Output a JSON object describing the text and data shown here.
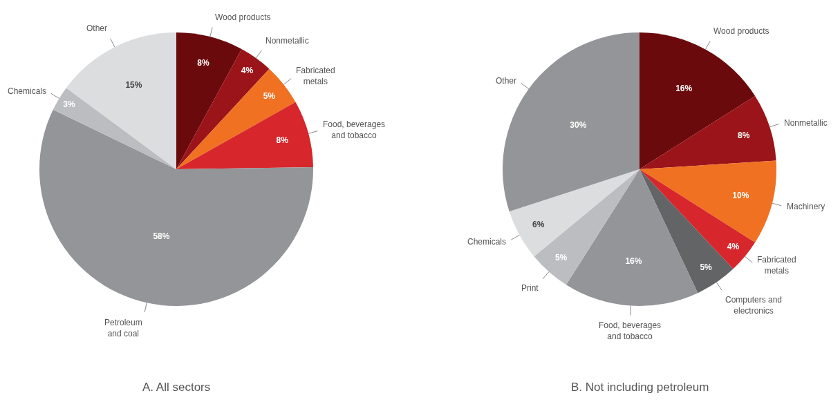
{
  "chart_data": [
    {
      "type": "pie",
      "title": "A. All sectors",
      "categories": [
        "Wood products",
        "Nonmetallic",
        "Fabricated\nmetals",
        "Food, beverages\nand tobacco",
        "Petroleum\nand coal",
        "Chemicals",
        "Other"
      ],
      "values": [
        8,
        4,
        5,
        8,
        58,
        3,
        15
      ],
      "value_labels": [
        "8%",
        "4%",
        "5%",
        "8%",
        "58%",
        "3%",
        "15%"
      ],
      "colors": [
        "#6b0a0c",
        "#9b1419",
        "#f07122",
        "#d7262c",
        "#939598",
        "#bcbdc0",
        "#dcdddf"
      ]
    },
    {
      "type": "pie",
      "title": "B. Not including petroleum",
      "categories": [
        "Wood products",
        "Nonmetallic",
        "Machinery",
        "Fabricated\nmetals",
        "Computers and\nelectronics",
        "Food, beverages\nand tobacco",
        "Print",
        "Chemicals",
        "Other"
      ],
      "values": [
        16,
        8,
        10,
        4,
        5,
        16,
        5,
        6,
        30
      ],
      "value_labels": [
        "16%",
        "8%",
        "10%",
        "4%",
        "5%",
        "16%",
        "5%",
        "6%",
        "30%"
      ],
      "colors": [
        "#6b0a0c",
        "#9b1419",
        "#f07122",
        "#d7262c",
        "#636466",
        "#939598",
        "#bcbdc0",
        "#dcdddf",
        "#939598"
      ]
    }
  ]
}
